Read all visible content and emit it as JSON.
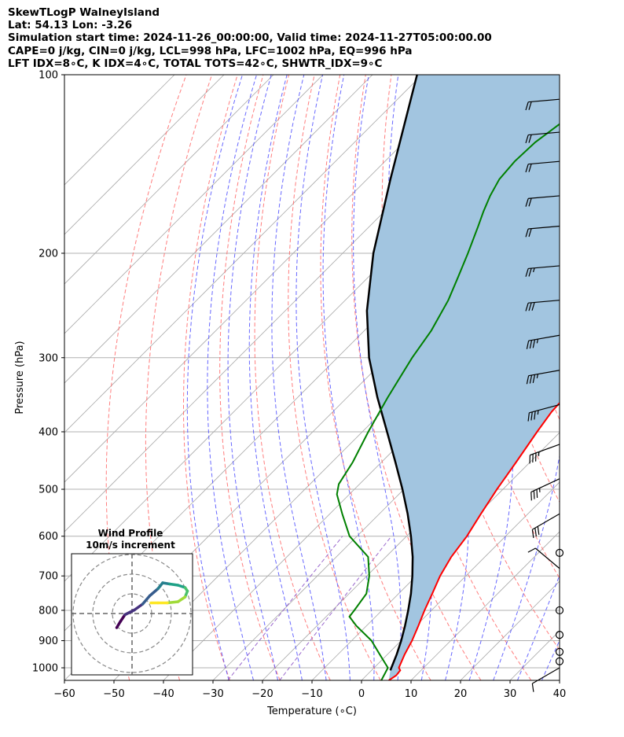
{
  "header": {
    "line1": "SkewTLogP WalneyIsland",
    "line2": "Lat: 54.13   Lon: -3.26",
    "line3": "Simulation start time: 2024-11-26_00:00:00, Valid time: 2024-11-27T05:00:00.00",
    "line4": "CAPE=0 j/kg, CIN=0 j/kg, LCL=998 hPa, LFC=1002 hPa, EQ=996 hPa",
    "line5": "LFT IDX=8∘C, K IDX=4∘C, TOTAL TOTS=42∘C, SHWTR_IDX=9∘C"
  },
  "chart_data": {
    "type": "line",
    "xlabel": "Temperature (∘C)",
    "ylabel": "Pressure (hPa)",
    "xlim": [
      -60,
      40
    ],
    "ylim": [
      1050,
      100
    ],
    "y_scale": "log",
    "x_ticks": [
      "−60",
      "−50",
      "−40",
      "−30",
      "−20",
      "−10",
      "0",
      "10",
      "20",
      "30",
      "40"
    ],
    "y_ticks": [
      "100",
      "200",
      "300",
      "400",
      "500",
      "600",
      "700",
      "800",
      "900",
      "1000"
    ],
    "grid": true,
    "colors": {
      "temperature": "#ff0000",
      "dewpoint": "#008000",
      "parcel": "#000000",
      "shading": "#a2c5e0",
      "dry_adiabat": "#ff6666",
      "moist_adiabat": "#4d4dff",
      "mixing_ratio": "#9966cc",
      "isotherm": "#aaaaaa"
    },
    "series": [
      {
        "key": "temperature",
        "points": [
          [
            1050,
            5.5
          ],
          [
            1030,
            6.0
          ],
          [
            1010,
            5.8
          ],
          [
            1000,
            5.0
          ],
          [
            950,
            3.5
          ],
          [
            900,
            2.2
          ],
          [
            850,
            0.5
          ],
          [
            800,
            -1.4
          ],
          [
            750,
            -3.2
          ],
          [
            700,
            -5.2
          ],
          [
            650,
            -6.8
          ],
          [
            600,
            -7.8
          ],
          [
            550,
            -9.5
          ],
          [
            500,
            -11.2
          ],
          [
            450,
            -12.8
          ],
          [
            400,
            -14.7
          ],
          [
            370,
            -15.8
          ],
          [
            340,
            -16.2
          ],
          [
            300,
            -15.9
          ],
          [
            270,
            -16.2
          ],
          [
            240,
            -16.9
          ],
          [
            215,
            -18.0
          ],
          [
            200,
            -19.2
          ],
          [
            185,
            -20.3
          ],
          [
            170,
            -21.6
          ],
          [
            160,
            -22.7
          ],
          [
            150,
            -24.3
          ],
          [
            140,
            -26.3
          ],
          [
            130,
            -28.6
          ],
          [
            120,
            -31.5
          ],
          [
            110,
            -33.9
          ],
          [
            100,
            -36.0
          ]
        ]
      },
      {
        "key": "dewpoint",
        "points": [
          [
            1050,
            4.0
          ],
          [
            1000,
            2.8
          ],
          [
            950,
            -1.5
          ],
          [
            900,
            -6.0
          ],
          [
            850,
            -12.0
          ],
          [
            820,
            -15.3
          ],
          [
            800,
            -15.6
          ],
          [
            750,
            -16.5
          ],
          [
            700,
            -19.5
          ],
          [
            650,
            -23.6
          ],
          [
            600,
            -31.5
          ],
          [
            550,
            -37.5
          ],
          [
            510,
            -42.5
          ],
          [
            490,
            -44.2
          ],
          [
            450,
            -45.8
          ],
          [
            400,
            -48.8
          ],
          [
            350,
            -51.8
          ],
          [
            300,
            -54.9
          ],
          [
            270,
            -56.5
          ],
          [
            240,
            -59.2
          ],
          [
            220,
            -61.8
          ],
          [
            200,
            -64.7
          ],
          [
            180,
            -68.1
          ],
          [
            170,
            -70.0
          ],
          [
            160,
            -71.8
          ],
          [
            150,
            -73.3
          ],
          [
            140,
            -73.8
          ],
          [
            130,
            -73.5
          ],
          [
            120,
            -72.1
          ],
          [
            110,
            -70.5
          ],
          [
            100,
            -69.7
          ]
        ]
      },
      {
        "key": "parcel",
        "points": [
          [
            1010,
            3.8
          ],
          [
            1000,
            3.5
          ],
          [
            950,
            1.9
          ],
          [
            900,
            0.0
          ],
          [
            850,
            -2.2
          ],
          [
            800,
            -4.7
          ],
          [
            750,
            -7.5
          ],
          [
            700,
            -10.8
          ],
          [
            650,
            -14.6
          ],
          [
            600,
            -19.1
          ],
          [
            550,
            -24.3
          ],
          [
            500,
            -30.3
          ],
          [
            450,
            -37.2
          ],
          [
            400,
            -45.0
          ],
          [
            350,
            -53.9
          ],
          [
            300,
            -63.6
          ],
          [
            250,
            -73.5
          ],
          [
            200,
            -83.8
          ],
          [
            150,
            -95.3
          ],
          [
            100,
            -111.0
          ]
        ]
      }
    ],
    "wind_barbs": [
      {
        "p": 1000,
        "speed_kt": 10,
        "dir_deg": 240
      },
      {
        "p": 975,
        "speed_kt": 0,
        "dir_deg": 0
      },
      {
        "p": 940,
        "speed_kt": 0,
        "dir_deg": 0
      },
      {
        "p": 880,
        "speed_kt": 0,
        "dir_deg": 0
      },
      {
        "p": 800,
        "speed_kt": 0,
        "dir_deg": 0
      },
      {
        "p": 680,
        "speed_kt": 10,
        "dir_deg": 310
      },
      {
        "p": 640,
        "speed_kt": 0,
        "dir_deg": 0
      },
      {
        "p": 550,
        "speed_kt": 30,
        "dir_deg": 240
      },
      {
        "p": 480,
        "speed_kt": 35,
        "dir_deg": 245
      },
      {
        "p": 420,
        "speed_kt": 35,
        "dir_deg": 250
      },
      {
        "p": 360,
        "speed_kt": 35,
        "dir_deg": 255
      },
      {
        "p": 315,
        "speed_kt": 35,
        "dir_deg": 260
      },
      {
        "p": 275,
        "speed_kt": 35,
        "dir_deg": 260
      },
      {
        "p": 240,
        "speed_kt": 30,
        "dir_deg": 265
      },
      {
        "p": 210,
        "speed_kt": 25,
        "dir_deg": 265
      },
      {
        "p": 180,
        "speed_kt": 20,
        "dir_deg": 265
      },
      {
        "p": 160,
        "speed_kt": 20,
        "dir_deg": 265
      },
      {
        "p": 140,
        "speed_kt": 20,
        "dir_deg": 265
      },
      {
        "p": 125,
        "speed_kt": 20,
        "dir_deg": 265
      },
      {
        "p": 110,
        "speed_kt": 20,
        "dir_deg": 265
      }
    ],
    "hodograph": {
      "title_line1": "Wind Profile",
      "title_line2": "10m/s increment",
      "points": [
        [
          -1.3,
          -1.2
        ],
        [
          -1.0,
          -0.7
        ],
        [
          -0.6,
          -0.1
        ],
        [
          0.2,
          0.3
        ],
        [
          0.9,
          0.8
        ],
        [
          1.5,
          1.5
        ],
        [
          2.2,
          2.1
        ],
        [
          2.6,
          2.6
        ],
        [
          3.2,
          2.5
        ],
        [
          3.9,
          2.4
        ],
        [
          4.5,
          2.2
        ],
        [
          4.7,
          1.9
        ],
        [
          4.5,
          1.4
        ],
        [
          3.9,
          1.0
        ],
        [
          3.0,
          0.9
        ],
        [
          2.2,
          0.9
        ],
        [
          1.6,
          0.9
        ]
      ]
    }
  }
}
